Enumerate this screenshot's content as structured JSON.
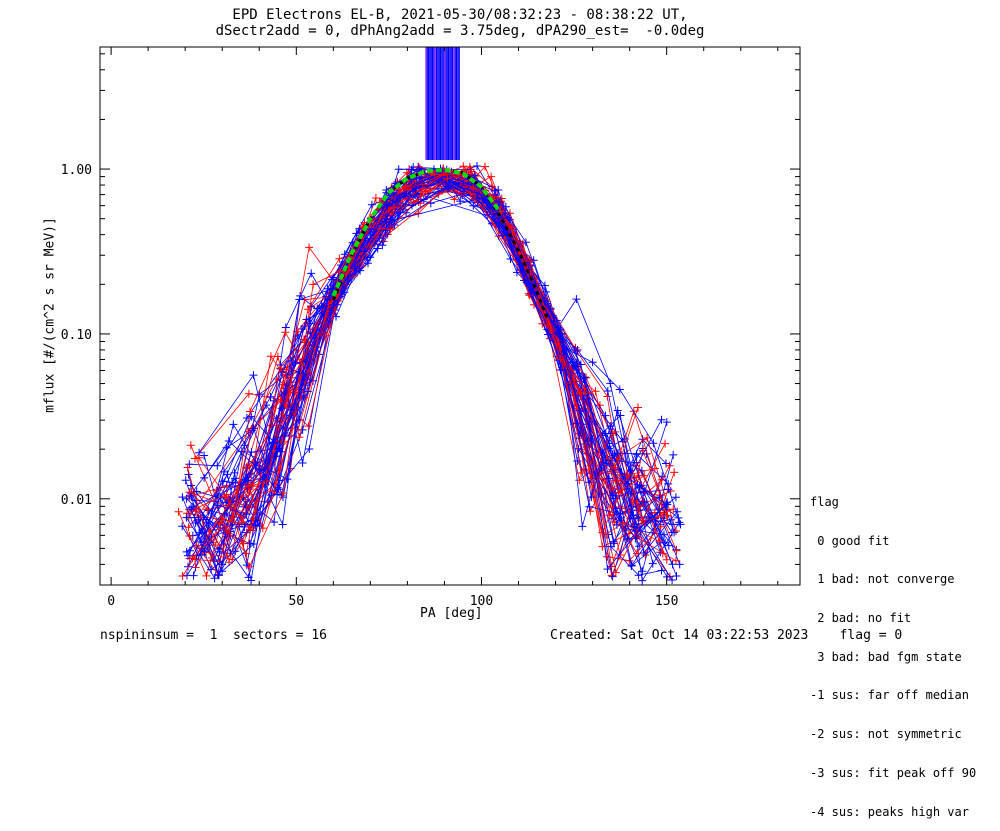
{
  "title": {
    "line1": "EPD Electrons EL-B, 2021-05-30/08:32:23 - 08:38:22 UT,",
    "line2": "dSectr2add = 0, dPhAng2add = 3.75deg, dPA290_est=  -0.0deg"
  },
  "footer": {
    "left": "nspininsum =  1  sectors = 16",
    "right": "Created: Sat Oct 14 03:22:53 2023    flag = 0"
  },
  "legend": {
    "title": "flag",
    "items": [
      " 0 good fit",
      " 1 bad: not converge",
      " 2 bad: no fit",
      " 3 bad: bad fgm state",
      "-1 sus: far off median",
      "-2 sus: not symmetric",
      "-3 sus: fit peak off 90",
      "-4 sus: peaks high var"
    ]
  },
  "chart_data": {
    "type": "line",
    "xlabel": "PA [deg]",
    "ylabel": "mflux [#/(cm^2 s sr MeV)]",
    "xlim": [
      -3,
      186
    ],
    "ylim": [
      0.003,
      5.5
    ],
    "yscale": "log",
    "x_ticks": [
      0,
      50,
      100,
      150
    ],
    "x_tick_labels": [
      "0",
      "50",
      "100",
      "150"
    ],
    "y_ticks": [
      0.01,
      0.1,
      1.0
    ],
    "y_tick_labels": [
      "0.01",
      "0.10",
      "1.00"
    ],
    "series_colors": {
      "red": "#ff0000",
      "blue": "#0000ff",
      "purple": "#a020f0",
      "fit": "#00dd00",
      "median": "#000000"
    },
    "median_fit": {
      "x": [
        60,
        65,
        70,
        75,
        80,
        85,
        90,
        95,
        100,
        105,
        110,
        115,
        118
      ],
      "y": [
        0.16,
        0.3,
        0.5,
        0.72,
        0.88,
        0.97,
        0.99,
        0.95,
        0.78,
        0.52,
        0.32,
        0.18,
        0.12
      ]
    },
    "green_fit": {
      "x": [
        60,
        65,
        70,
        75,
        80,
        85,
        90,
        95,
        100,
        105
      ],
      "y": [
        0.17,
        0.31,
        0.5,
        0.72,
        0.88,
        0.97,
        0.99,
        0.94,
        0.78,
        0.55
      ]
    },
    "pa_sectors_x": [
      22,
      30,
      37,
      45,
      52,
      60,
      67,
      75,
      82,
      90,
      97,
      105,
      112,
      120,
      127,
      135,
      142,
      150
    ],
    "profile_envelope": {
      "x": [
        30,
        45,
        60,
        75,
        82,
        90,
        97,
        105,
        120,
        135,
        150
      ],
      "y": [
        0.006,
        0.02,
        0.18,
        0.6,
        0.85,
        0.95,
        0.85,
        0.55,
        0.1,
        0.012,
        0.006
      ]
    },
    "top_bars_x_range": [
      85,
      94
    ]
  }
}
